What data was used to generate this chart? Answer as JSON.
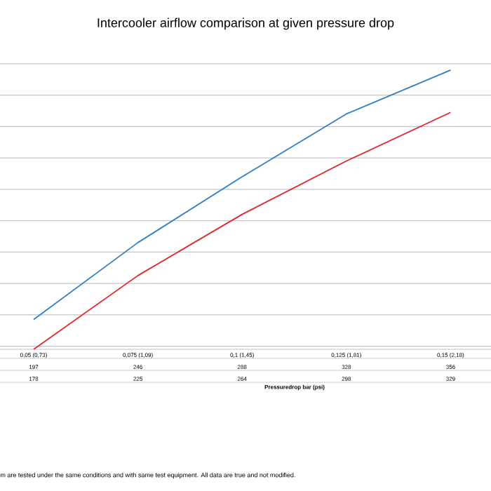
{
  "chart_data": {
    "type": "line",
    "title": "Intercooler airflow comparison at given pressure drop",
    "xlabel": "Pressuredrop bar (psi)",
    "categories": [
      "0,05 (0,73)",
      "0,075 (1,09)",
      "0,1 (1,45)",
      "0,125 (1,81)",
      "0,15 (2,18)"
    ],
    "series": [
      {
        "color": "#2f7fc1",
        "values": [
          197,
          246,
          288,
          328,
          356
        ]
      },
      {
        "color": "#e0262b",
        "values": [
          178,
          225,
          264,
          298,
          329
        ]
      }
    ],
    "grid": "y",
    "data_labels": true,
    "marker": "none",
    "line_style": "solid",
    "annotations": [
      "m are tested under the same conditions and with same test equipment. All data are true and not modified."
    ]
  }
}
